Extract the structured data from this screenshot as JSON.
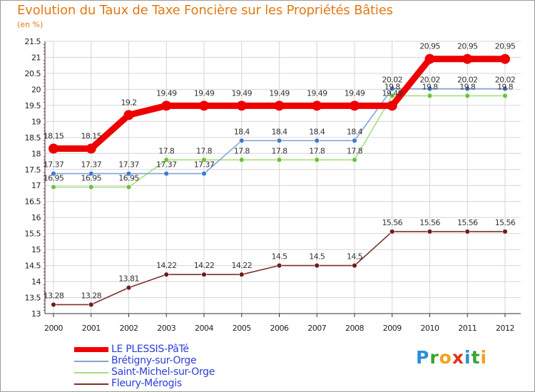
{
  "header": {
    "title": "Evolution du Taux de Taxe Foncière sur les Propriétés Bâties",
    "unit": "(en %)"
  },
  "logo": {
    "letters": [
      "P",
      "r",
      "o",
      "x",
      "i",
      "t",
      "i"
    ],
    "colors": [
      "#2a8fd8",
      "#3aa334",
      "#f2a21a",
      "#e0331e",
      "#2a8fd8",
      "#3aa334",
      "#f2a21a"
    ]
  },
  "chart_data": {
    "type": "line",
    "title": "Evolution du Taux de Taxe Foncière sur les Propriétés Bâties",
    "ylabel": "(en %)",
    "xlabel": "",
    "ylim": [
      13,
      21.5
    ],
    "ytick_step": 0.5,
    "yticks": [
      "13",
      "13.5",
      "14",
      "14.5",
      "15",
      "15.5",
      "16",
      "16.5",
      "17",
      "17.5",
      "18",
      "18.5",
      "19",
      "19.5",
      "20",
      "20.5",
      "21",
      "21.5"
    ],
    "categories": [
      "2000",
      "2001",
      "2002",
      "2003",
      "2004",
      "2005",
      "2006",
      "2007",
      "2008",
      "2009",
      "2010",
      "2011",
      "2012"
    ],
    "legend_position": "bottom-left",
    "series": [
      {
        "name": "LE PLESSIS-PâTé",
        "color": "#ee0000",
        "values": [
          18.15,
          18.15,
          19.2,
          19.49,
          19.49,
          19.49,
          19.49,
          19.49,
          19.49,
          19.49,
          20.95,
          20.95,
          20.95
        ],
        "labels": [
          "18.15",
          "18.15",
          "19.2",
          "19.49",
          "19.49",
          "19.49",
          "19.49",
          "19.49",
          "19.49",
          "19.49",
          "20.95",
          "20.95",
          "20.95"
        ]
      },
      {
        "name": "Brétigny-sur-Orge",
        "color": "#7fa6d8",
        "marker": "#3f7bd0",
        "values": [
          17.37,
          17.37,
          17.37,
          17.37,
          17.37,
          18.4,
          18.4,
          18.4,
          18.4,
          20.02,
          20.02,
          20.02,
          20.02
        ],
        "labels": [
          "17.37",
          "17.37",
          "17.37",
          "17.37",
          "17.37",
          "18.4",
          "18.4",
          "18.4",
          "18.4",
          "20.02",
          "20.02",
          "20.02",
          "20.02"
        ]
      },
      {
        "name": "Saint-Michel-sur-Orge",
        "color": "#a6df7a",
        "marker": "#6cc23a",
        "values": [
          16.95,
          16.95,
          16.95,
          17.8,
          17.8,
          17.8,
          17.8,
          17.8,
          17.8,
          19.8,
          19.8,
          19.8,
          19.8
        ],
        "labels": [
          "16.95",
          "16.95",
          "16.95",
          "17.8",
          "17.8",
          "17.8",
          "17.8",
          "17.8",
          "17.8",
          "19.8",
          "19.8",
          "19.8",
          "19.8"
        ]
      },
      {
        "name": "Fleury-Mérogis",
        "color": "#7b2f2f",
        "marker": "#6e1d1d",
        "values": [
          13.28,
          13.28,
          13.81,
          14.22,
          14.22,
          14.22,
          14.5,
          14.5,
          14.5,
          15.56,
          15.56,
          15.56,
          15.56
        ],
        "labels": [
          "13.28",
          "13.28",
          "13.81",
          "14.22",
          "14.22",
          "14.22",
          "14.5",
          "14.5",
          "14.5",
          "15.56",
          "15.56",
          "15.56",
          "15.56"
        ]
      }
    ]
  }
}
